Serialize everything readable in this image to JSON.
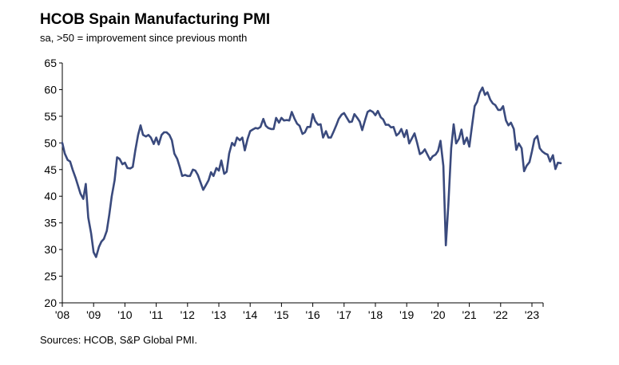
{
  "header": {
    "title": "HCOB Spain Manufacturing PMI",
    "subtitle": "sa, >50 = improvement since previous month"
  },
  "footer": {
    "source": "Sources: HCOB, S&P Global PMI."
  },
  "colors": {
    "line": "#3a4a7d",
    "axis": "#000000",
    "grid": "#cccccc"
  },
  "chart_data": {
    "type": "line",
    "title": "HCOB Spain Manufacturing PMI",
    "subtitle": "sa, >50 = improvement since previous month",
    "ylim": [
      20,
      65
    ],
    "xlim": [
      2008.0,
      2023.9
    ],
    "yticks": [
      20,
      25,
      30,
      35,
      40,
      45,
      50,
      55,
      60,
      65
    ],
    "xtick_labels": [
      "'08",
      "'09",
      "'10",
      "'11",
      "'12",
      "'13",
      "'14",
      "'15",
      "'16",
      "'17",
      "'18",
      "'19",
      "'20",
      "'21",
      "'22",
      "'23"
    ],
    "grid": false,
    "series": [
      {
        "points": [
          [
            2008.0,
            50.0
          ],
          [
            2008.08,
            48.0
          ],
          [
            2008.17,
            46.8
          ],
          [
            2008.25,
            46.5
          ],
          [
            2008.33,
            45.0
          ],
          [
            2008.42,
            43.5
          ],
          [
            2008.5,
            42.0
          ],
          [
            2008.58,
            40.5
          ],
          [
            2008.67,
            39.5
          ],
          [
            2008.75,
            42.3
          ],
          [
            2008.83,
            36.0
          ],
          [
            2008.92,
            33.0
          ],
          [
            2009.0,
            29.5
          ],
          [
            2009.08,
            28.6
          ],
          [
            2009.17,
            30.5
          ],
          [
            2009.25,
            31.5
          ],
          [
            2009.33,
            32.0
          ],
          [
            2009.42,
            33.5
          ],
          [
            2009.5,
            36.5
          ],
          [
            2009.58,
            40.0
          ],
          [
            2009.67,
            43.0
          ],
          [
            2009.75,
            47.3
          ],
          [
            2009.83,
            47.0
          ],
          [
            2009.92,
            46.0
          ],
          [
            2010.0,
            46.3
          ],
          [
            2010.08,
            45.3
          ],
          [
            2010.17,
            45.2
          ],
          [
            2010.25,
            45.5
          ],
          [
            2010.33,
            48.5
          ],
          [
            2010.42,
            51.5
          ],
          [
            2010.5,
            53.3
          ],
          [
            2010.58,
            51.5
          ],
          [
            2010.67,
            51.2
          ],
          [
            2010.75,
            51.5
          ],
          [
            2010.83,
            51.0
          ],
          [
            2010.92,
            49.8
          ],
          [
            2011.0,
            51.0
          ],
          [
            2011.08,
            49.7
          ],
          [
            2011.17,
            51.5
          ],
          [
            2011.25,
            52.0
          ],
          [
            2011.33,
            52.0
          ],
          [
            2011.42,
            51.5
          ],
          [
            2011.5,
            50.5
          ],
          [
            2011.58,
            48.0
          ],
          [
            2011.67,
            47.0
          ],
          [
            2011.75,
            45.5
          ],
          [
            2011.83,
            43.8
          ],
          [
            2011.92,
            44.0
          ],
          [
            2012.0,
            43.8
          ],
          [
            2012.08,
            43.8
          ],
          [
            2012.17,
            45.0
          ],
          [
            2012.25,
            44.8
          ],
          [
            2012.33,
            44.0
          ],
          [
            2012.42,
            42.5
          ],
          [
            2012.5,
            41.2
          ],
          [
            2012.58,
            42.0
          ],
          [
            2012.67,
            43.0
          ],
          [
            2012.75,
            44.5
          ],
          [
            2012.83,
            43.8
          ],
          [
            2012.92,
            45.3
          ],
          [
            2013.0,
            44.8
          ],
          [
            2013.08,
            46.7
          ],
          [
            2013.17,
            44.2
          ],
          [
            2013.25,
            44.6
          ],
          [
            2013.33,
            48.0
          ],
          [
            2013.42,
            50.0
          ],
          [
            2013.5,
            49.5
          ],
          [
            2013.58,
            51.0
          ],
          [
            2013.67,
            50.5
          ],
          [
            2013.75,
            51.0
          ],
          [
            2013.83,
            48.6
          ],
          [
            2013.92,
            50.8
          ],
          [
            2014.0,
            52.2
          ],
          [
            2014.08,
            52.5
          ],
          [
            2014.17,
            52.8
          ],
          [
            2014.25,
            52.7
          ],
          [
            2014.33,
            53.0
          ],
          [
            2014.42,
            54.5
          ],
          [
            2014.5,
            53.2
          ],
          [
            2014.58,
            52.8
          ],
          [
            2014.67,
            52.6
          ],
          [
            2014.75,
            52.6
          ],
          [
            2014.83,
            54.7
          ],
          [
            2014.92,
            53.8
          ],
          [
            2015.0,
            54.7
          ],
          [
            2015.08,
            54.2
          ],
          [
            2015.17,
            54.3
          ],
          [
            2015.25,
            54.2
          ],
          [
            2015.33,
            55.8
          ],
          [
            2015.42,
            54.5
          ],
          [
            2015.5,
            53.6
          ],
          [
            2015.58,
            53.2
          ],
          [
            2015.67,
            51.7
          ],
          [
            2015.75,
            52.0
          ],
          [
            2015.83,
            53.0
          ],
          [
            2015.92,
            53.0
          ],
          [
            2016.0,
            55.4
          ],
          [
            2016.08,
            54.1
          ],
          [
            2016.17,
            53.4
          ],
          [
            2016.25,
            53.5
          ],
          [
            2016.33,
            51.0
          ],
          [
            2016.42,
            52.2
          ],
          [
            2016.5,
            51.0
          ],
          [
            2016.58,
            51.0
          ],
          [
            2016.67,
            52.2
          ],
          [
            2016.75,
            53.3
          ],
          [
            2016.83,
            54.5
          ],
          [
            2016.92,
            55.3
          ],
          [
            2017.0,
            55.6
          ],
          [
            2017.08,
            54.8
          ],
          [
            2017.17,
            53.9
          ],
          [
            2017.25,
            54.0
          ],
          [
            2017.33,
            55.4
          ],
          [
            2017.42,
            54.7
          ],
          [
            2017.5,
            54.0
          ],
          [
            2017.58,
            52.4
          ],
          [
            2017.67,
            54.3
          ],
          [
            2017.75,
            55.8
          ],
          [
            2017.83,
            56.1
          ],
          [
            2017.92,
            55.8
          ],
          [
            2018.0,
            55.2
          ],
          [
            2018.08,
            56.0
          ],
          [
            2018.17,
            54.8
          ],
          [
            2018.25,
            54.4
          ],
          [
            2018.33,
            53.4
          ],
          [
            2018.42,
            53.4
          ],
          [
            2018.5,
            52.9
          ],
          [
            2018.58,
            53.0
          ],
          [
            2018.67,
            51.4
          ],
          [
            2018.75,
            51.8
          ],
          [
            2018.83,
            52.6
          ],
          [
            2018.92,
            51.1
          ],
          [
            2019.0,
            52.4
          ],
          [
            2019.08,
            49.9
          ],
          [
            2019.17,
            50.9
          ],
          [
            2019.25,
            51.8
          ],
          [
            2019.33,
            50.1
          ],
          [
            2019.42,
            47.9
          ],
          [
            2019.5,
            48.2
          ],
          [
            2019.58,
            48.8
          ],
          [
            2019.67,
            47.7
          ],
          [
            2019.75,
            46.8
          ],
          [
            2019.83,
            47.5
          ],
          [
            2019.92,
            47.8
          ],
          [
            2020.0,
            48.5
          ],
          [
            2020.08,
            50.4
          ],
          [
            2020.17,
            45.7
          ],
          [
            2020.25,
            30.8
          ],
          [
            2020.33,
            38.3
          ],
          [
            2020.42,
            49.0
          ],
          [
            2020.5,
            53.5
          ],
          [
            2020.58,
            49.9
          ],
          [
            2020.67,
            50.8
          ],
          [
            2020.75,
            52.5
          ],
          [
            2020.83,
            49.8
          ],
          [
            2020.92,
            51.0
          ],
          [
            2021.0,
            49.3
          ],
          [
            2021.08,
            52.9
          ],
          [
            2021.17,
            56.9
          ],
          [
            2021.25,
            57.7
          ],
          [
            2021.33,
            59.4
          ],
          [
            2021.42,
            60.4
          ],
          [
            2021.5,
            59.0
          ],
          [
            2021.58,
            59.5
          ],
          [
            2021.67,
            58.1
          ],
          [
            2021.75,
            57.4
          ],
          [
            2021.83,
            57.1
          ],
          [
            2021.92,
            56.2
          ],
          [
            2022.0,
            56.2
          ],
          [
            2022.08,
            56.9
          ],
          [
            2022.17,
            54.2
          ],
          [
            2022.25,
            53.3
          ],
          [
            2022.33,
            53.8
          ],
          [
            2022.42,
            52.6
          ],
          [
            2022.5,
            48.7
          ],
          [
            2022.58,
            49.9
          ],
          [
            2022.67,
            49.0
          ],
          [
            2022.75,
            44.7
          ],
          [
            2022.83,
            45.7
          ],
          [
            2022.92,
            46.4
          ],
          [
            2023.0,
            48.4
          ],
          [
            2023.08,
            50.7
          ],
          [
            2023.17,
            51.3
          ],
          [
            2023.25,
            49.0
          ],
          [
            2023.33,
            48.4
          ],
          [
            2023.42,
            48.0
          ],
          [
            2023.5,
            47.8
          ],
          [
            2023.58,
            46.5
          ],
          [
            2023.67,
            47.7
          ],
          [
            2023.75,
            45.1
          ],
          [
            2023.83,
            46.3
          ],
          [
            2023.92,
            46.2
          ]
        ]
      }
    ]
  }
}
